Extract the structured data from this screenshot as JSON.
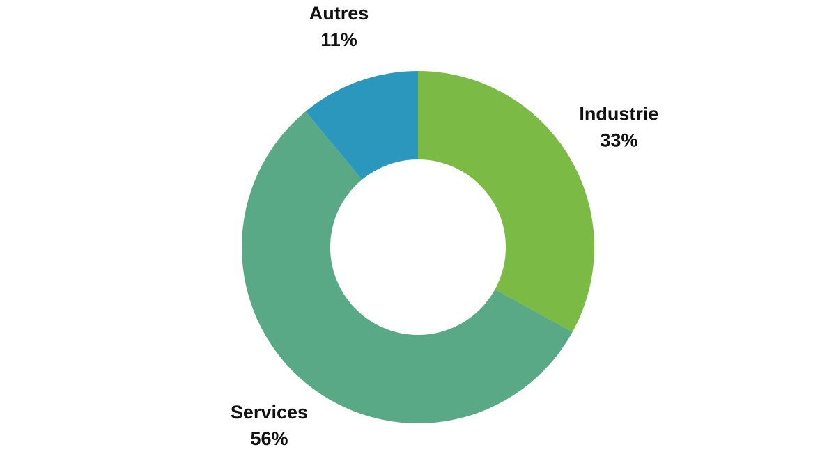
{
  "chart_data": {
    "type": "donut",
    "categories": [
      "Industrie",
      "Services",
      "Autres"
    ],
    "values": [
      33,
      56,
      11
    ],
    "value_labels": [
      "33%",
      "56%",
      "11%"
    ],
    "colors": [
      "#7aba45",
      "#5aa986",
      "#2b97bd"
    ]
  }
}
